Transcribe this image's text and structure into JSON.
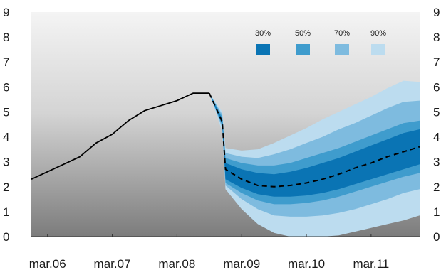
{
  "chart_data": {
    "type": "area",
    "title": "",
    "xlabel": "",
    "ylabel": "",
    "ylim": [
      0,
      9
    ],
    "yticks": [
      "0",
      "1",
      "2",
      "3",
      "4",
      "5",
      "6",
      "7",
      "8",
      "9"
    ],
    "xticks": [
      {
        "label": "mar.06",
        "x": 2006.25
      },
      {
        "label": "mar.07",
        "x": 2007.25
      },
      {
        "label": "mar.08",
        "x": 2008.25
      },
      {
        "label": "mar.09",
        "x": 2009.25
      },
      {
        "label": "mar.10",
        "x": 2010.25
      },
      {
        "label": "mar.11",
        "x": 2011.25
      }
    ],
    "xlim": [
      2006.0,
      2012.0
    ],
    "grid": false,
    "background": "gray gradient (light at top, darker at bottom)",
    "legend_position": "top-right",
    "legend": [
      {
        "label": "30%",
        "color": "#0a74b4"
      },
      {
        "label": "50%",
        "color": "#3f9ccd"
      },
      {
        "label": "70%",
        "color": "#7ebbdf"
      },
      {
        "label": "90%",
        "color": "#bcdcef"
      }
    ],
    "history": {
      "x": [
        2006.0,
        2006.25,
        2006.5,
        2006.75,
        2007.0,
        2007.25,
        2007.5,
        2007.75,
        2008.0,
        2008.25,
        2008.5,
        2008.75
      ],
      "y": [
        2.3,
        2.6,
        2.9,
        3.2,
        3.75,
        4.1,
        4.65,
        5.05,
        5.25,
        5.45,
        5.75,
        5.75
      ]
    },
    "forecast": {
      "x": [
        2008.75,
        2008.95,
        2009.0,
        2009.25,
        2009.5,
        2009.75,
        2010.0,
        2010.25,
        2010.5,
        2010.75,
        2011.0,
        2011.25,
        2011.5,
        2011.75,
        2012.0
      ],
      "median": [
        5.75,
        4.6,
        2.7,
        2.3,
        2.05,
        2.0,
        2.05,
        2.15,
        2.3,
        2.5,
        2.75,
        2.95,
        3.2,
        3.4,
        3.6
      ],
      "bands": [
        {
          "level": "90%",
          "lower": [
            5.75,
            4.2,
            1.9,
            1.1,
            0.5,
            0.15,
            0.0,
            0.0,
            0.0,
            0.05,
            0.2,
            0.35,
            0.5,
            0.65,
            0.85
          ],
          "upper": [
            5.75,
            5.0,
            3.55,
            3.45,
            3.5,
            3.75,
            4.05,
            4.35,
            4.7,
            5.0,
            5.3,
            5.6,
            5.95,
            6.25,
            6.2
          ]
        },
        {
          "level": "70%",
          "lower": [
            5.75,
            4.35,
            2.05,
            1.5,
            1.1,
            0.85,
            0.8,
            0.8,
            0.85,
            0.95,
            1.1,
            1.3,
            1.5,
            1.75,
            1.9
          ]
        },
        {
          "level": "50%",
          "lower": [
            5.75,
            4.45,
            2.15,
            1.75,
            1.45,
            1.3,
            1.3,
            1.35,
            1.45,
            1.6,
            1.8,
            2.0,
            2.2,
            2.4,
            2.55
          ],
          "upper": [
            5.75,
            4.8,
            3.15,
            2.95,
            2.85,
            2.85,
            2.95,
            3.15,
            3.35,
            3.55,
            3.8,
            4.05,
            4.3,
            4.55,
            4.65
          ]
        },
        {
          "level": "30%",
          "lower": [
            5.75,
            4.5,
            2.3,
            1.95,
            1.7,
            1.6,
            1.6,
            1.65,
            1.75,
            1.9,
            2.1,
            2.3,
            2.5,
            2.7,
            2.9
          ]
        }
      ],
      "band70_upper": [
        5.75,
        4.9,
        3.35,
        3.2,
        3.15,
        3.3,
        3.5,
        3.75,
        4.0,
        4.3,
        4.55,
        4.85,
        5.15,
        5.4,
        5.45
      ],
      "band30_upper": [
        5.75,
        4.7,
        2.95,
        2.7,
        2.55,
        2.5,
        2.6,
        2.75,
        2.95,
        3.15,
        3.4,
        3.65,
        3.9,
        4.15,
        4.3
      ]
    }
  }
}
